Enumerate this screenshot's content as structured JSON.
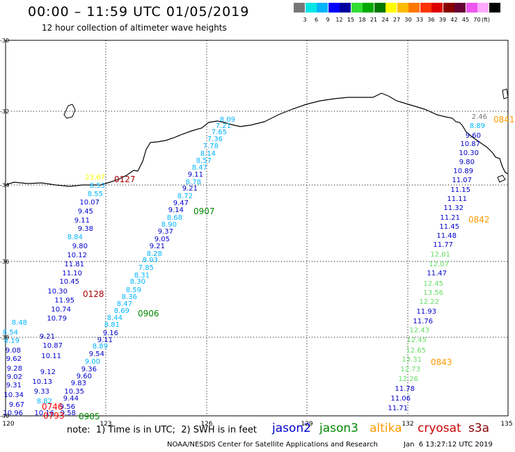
{
  "title": "00:00 – 11:59 UTC 01/05/2019",
  "subtitle": "12 hour collection of altimeter wave heights",
  "legend": {
    "colors": [
      "#777777",
      "#00e6e6",
      "#00b4ff",
      "#0000ff",
      "#0000a0",
      "#33dd33",
      "#00aa00",
      "#007700",
      "#ffff00",
      "#ffbb00",
      "#ff7700",
      "#ff3300",
      "#dd0000",
      "#880000",
      "#660033",
      "#ee55ee",
      "#ffaaff",
      "#000000"
    ],
    "labels": [
      "3",
      "6",
      "9",
      "12",
      "15",
      "18",
      "21",
      "24",
      "27",
      "30",
      "33",
      "36",
      "39",
      "42",
      "45",
      "70"
    ],
    "unit": "(ft)"
  },
  "axes": {
    "x_ticks": [
      "120",
      "123",
      "126",
      "129",
      "132",
      "135"
    ],
    "y_ticks": [
      "-30",
      "-32",
      "-34",
      "-36",
      "-38",
      "-40"
    ]
  },
  "satellites": [
    {
      "name": "jason2",
      "color": "#0000cc"
    },
    {
      "name": "jason3",
      "color": "#008800"
    },
    {
      "name": "altika",
      "color": "#ff9900"
    },
    {
      "name": "cryosat",
      "color": "#cc0000"
    },
    {
      "name": "s3a",
      "color": "#880000"
    }
  ],
  "note": "note:  1) Time is in UTC;  2) SWH is in feet",
  "credit": "NOAA/NESDIS Center for Satellite Applications and Research",
  "timestamp": "Jan  6 13:27:12 UTC 2019",
  "pass_labels": [
    {
      "text": "0127",
      "color": "#aa0000"
    },
    {
      "text": "0128",
      "color": "#aa0000"
    },
    {
      "text": "0907",
      "color": "#008800"
    },
    {
      "text": "0906",
      "color": "#008800"
    },
    {
      "text": "0905",
      "color": "#008800"
    },
    {
      "text": "0842",
      "color": "#ff9900"
    },
    {
      "text": "0843",
      "color": "#ff9900"
    },
    {
      "text": "0841",
      "color": "#ff9900"
    },
    {
      "text": "0746",
      "color": "#ff0000"
    },
    {
      "text": "0793",
      "color": "#ff0000"
    }
  ],
  "tracks": [
    {
      "id": "t0128",
      "values": [
        [
          "10.96",
          "#0000cc"
        ],
        [
          "9.67",
          "#0000cc"
        ],
        [
          "10.34",
          "#0000cc"
        ],
        [
          "9.31",
          "#0000cc"
        ],
        [
          "9.02",
          "#0000cc"
        ],
        [
          "9.28",
          "#0000cc"
        ],
        [
          "9.62",
          "#0000cc"
        ],
        [
          "9.08",
          "#0000cc"
        ],
        [
          "8.19",
          "#00b4ff"
        ],
        [
          "8.54",
          "#00b4ff"
        ],
        [
          "8.48",
          "#00b4ff"
        ]
      ]
    },
    {
      "id": "t0127",
      "values": [
        [
          "10.16",
          "#0000cc"
        ],
        [
          "8.82",
          "#00b4ff"
        ],
        [
          "9.33",
          "#0000cc"
        ],
        [
          "10.13",
          "#0000cc"
        ],
        [
          "9.12",
          "#0000cc"
        ],
        [
          "10.11",
          "#0000cc"
        ],
        [
          "10.87",
          "#0000cc"
        ],
        [
          "9.21",
          "#0000cc"
        ],
        [
          "10.79",
          "#0000cc"
        ],
        [
          "10.74",
          "#0000cc"
        ],
        [
          "11.95",
          "#0000cc"
        ],
        [
          "10.30",
          "#0000cc"
        ],
        [
          "10.45",
          "#0000cc"
        ],
        [
          "11.10",
          "#0000cc"
        ],
        [
          "11.81",
          "#0000cc"
        ],
        [
          "10.12",
          "#0000cc"
        ],
        [
          "9.80",
          "#0000cc"
        ],
        [
          "8.84",
          "#00b4ff"
        ],
        [
          "9.38",
          "#0000cc"
        ],
        [
          "9.11",
          "#0000cc"
        ],
        [
          "9.45",
          "#0000cc"
        ],
        [
          "10.07",
          "#0000cc"
        ],
        [
          "8.55",
          "#00b4ff"
        ],
        [
          "8.53",
          "#00b4ff"
        ],
        [
          "23.67",
          "#ffff00"
        ]
      ]
    },
    {
      "id": "t0907",
      "values": [
        [
          "9.58",
          "#0000cc"
        ],
        [
          "9.56",
          "#0000cc"
        ],
        [
          "9.44",
          "#0000cc"
        ],
        [
          "10.35",
          "#0000cc"
        ],
        [
          "9.83",
          "#0000cc"
        ],
        [
          "9.60",
          "#0000cc"
        ],
        [
          "9.36",
          "#0000cc"
        ],
        [
          "9.00",
          "#00b4ff"
        ],
        [
          "9.54",
          "#0000cc"
        ],
        [
          "8.89",
          "#00b4ff"
        ],
        [
          "9.11",
          "#0000cc"
        ],
        [
          "9.16",
          "#0000cc"
        ],
        [
          "8.81",
          "#00b4ff"
        ],
        [
          "8.44",
          "#00b4ff"
        ],
        [
          "8.69",
          "#00b4ff"
        ],
        [
          "8.47",
          "#00b4ff"
        ],
        [
          "8.36",
          "#00b4ff"
        ],
        [
          "8.59",
          "#00b4ff"
        ],
        [
          "8.30",
          "#00b4ff"
        ],
        [
          "8.31",
          "#00b4ff"
        ],
        [
          "7.85",
          "#00b4ff"
        ],
        [
          "8.03",
          "#00b4ff"
        ],
        [
          "8.28",
          "#00b4ff"
        ],
        [
          "9.21",
          "#0000cc"
        ],
        [
          "9.05",
          "#0000cc"
        ],
        [
          "9.37",
          "#0000cc"
        ],
        [
          "8.90",
          "#00b4ff"
        ],
        [
          "8.68",
          "#00b4ff"
        ],
        [
          "9.14",
          "#0000cc"
        ],
        [
          "9.47",
          "#0000cc"
        ],
        [
          "8.72",
          "#00b4ff"
        ],
        [
          "9.21",
          "#0000cc"
        ],
        [
          "8.78",
          "#00b4ff"
        ],
        [
          "9.11",
          "#0000cc"
        ],
        [
          "8.47",
          "#00b4ff"
        ],
        [
          "8.57",
          "#00b4ff"
        ],
        [
          "8.14",
          "#00b4ff"
        ],
        [
          "7.78",
          "#00b4ff"
        ],
        [
          "7.36",
          "#00b4ff"
        ],
        [
          "7.65",
          "#00b4ff"
        ],
        [
          "7.21",
          "#00b4ff"
        ],
        [
          "8.09",
          "#00b4ff"
        ]
      ]
    },
    {
      "id": "t0842",
      "values": [
        [
          "11.71",
          "#0000cc"
        ],
        [
          "11.06",
          "#0000cc"
        ],
        [
          "11.78",
          "#0000cc"
        ],
        [
          "12.26",
          "#66dd66"
        ],
        [
          "12.73",
          "#66dd66"
        ],
        [
          "13.31",
          "#66dd66"
        ],
        [
          "12.65",
          "#66dd66"
        ],
        [
          "12.45",
          "#66dd66"
        ],
        [
          "12.43",
          "#66dd66"
        ],
        [
          "11.76",
          "#0000cc"
        ],
        [
          "11.93",
          "#0000cc"
        ],
        [
          "12.22",
          "#66dd66"
        ],
        [
          "13.56",
          "#66dd66"
        ],
        [
          "12.45",
          "#66dd66"
        ],
        [
          "11.47",
          "#0000cc"
        ],
        [
          "12.07",
          "#66dd66"
        ],
        [
          "12.01",
          "#66dd66"
        ],
        [
          "11.77",
          "#0000cc"
        ],
        [
          "11.48",
          "#0000cc"
        ],
        [
          "11.45",
          "#0000cc"
        ],
        [
          "11.21",
          "#0000cc"
        ],
        [
          "11.32",
          "#0000cc"
        ],
        [
          "11.11",
          "#0000cc"
        ],
        [
          "11.15",
          "#0000cc"
        ],
        [
          "11.07",
          "#0000cc"
        ],
        [
          "10.89",
          "#0000cc"
        ],
        [
          "9.80",
          "#0000cc"
        ],
        [
          "10.30",
          "#0000cc"
        ],
        [
          "10.87",
          "#0000cc"
        ],
        [
          "9.60",
          "#0000cc"
        ],
        [
          "8.89",
          "#00b4ff"
        ],
        [
          "2.46",
          "#777777"
        ]
      ]
    }
  ]
}
